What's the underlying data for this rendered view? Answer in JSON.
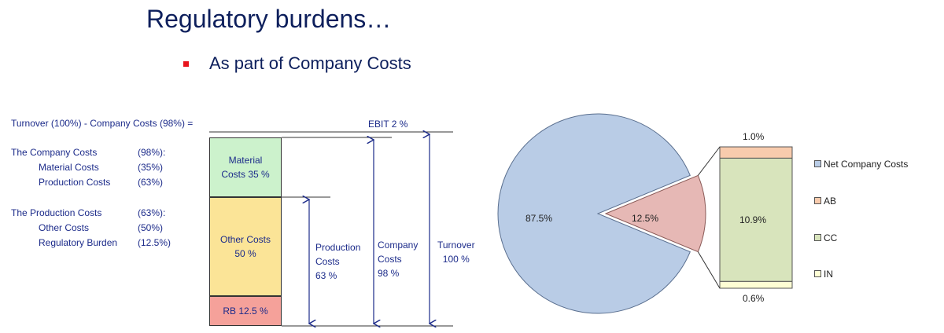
{
  "slide": {
    "title": "Regulatory burdens…",
    "bullet": "As part of Company Costs"
  },
  "equation": {
    "left": "Turnover (100%) - Company Costs (98%) =",
    "ebit": "EBIT 2 %"
  },
  "cost_list": [
    {
      "label": "The Company Costs",
      "value": "(98%):",
      "indent": false
    },
    {
      "label": "Material Costs",
      "value": "(35%)",
      "indent": true
    },
    {
      "label": "Production Costs",
      "value": "(63%)",
      "indent": true
    },
    {
      "label": "The Production Costs",
      "value": "(63%):",
      "indent": false
    },
    {
      "label": "Other Costs",
      "value": "(50%)",
      "indent": true
    },
    {
      "label": "Regulatory Burden",
      "value": "(12.5%)",
      "indent": true
    }
  ],
  "stack": {
    "segments": [
      {
        "label": "Material\nCosts 35 %",
        "color": "#ccf2cc"
      },
      {
        "label": "Other Costs\n50 %",
        "color": "#fbe497"
      },
      {
        "label": "RB 12.5 %",
        "color": "#f5a19a"
      }
    ],
    "brackets": {
      "production": "Production\nCosts\n63 %",
      "company": "Company\nCosts\n98 %",
      "turnover": "Turnover\n100 %"
    }
  },
  "chart_data": [
    {
      "type": "bar",
      "stacked": true,
      "categories": [
        "Material Costs",
        "Other Costs",
        "RB"
      ],
      "values": [
        35,
        50,
        12.5
      ],
      "unit": "%",
      "colors": [
        "#ccf2cc",
        "#fbe497",
        "#f5a19a"
      ]
    },
    {
      "type": "pie",
      "slices": [
        {
          "name": "Net Company Costs",
          "value": 87.5,
          "label": "87.5%",
          "color": "#b9cce6"
        },
        {
          "name": "Regulatory burden",
          "value": 12.5,
          "label": "12.5%",
          "color": "#e6b8b5"
        }
      ]
    },
    {
      "type": "bar",
      "stacked": true,
      "categories": [
        "AB",
        "CC",
        "IN"
      ],
      "values": [
        1.0,
        10.9,
        0.6
      ],
      "labels": [
        "1.0%",
        "10.9%",
        "0.6%"
      ],
      "colors": [
        "#f8cbad",
        "#d8e4bc",
        "#fefed4"
      ]
    }
  ],
  "legend": [
    {
      "label": "Net Company Costs",
      "color": "#b9cce6"
    },
    {
      "label": "AB",
      "color": "#f8cbad"
    },
    {
      "label": "CC",
      "color": "#d8e4bc"
    },
    {
      "label": "IN",
      "color": "#fefed4"
    }
  ]
}
